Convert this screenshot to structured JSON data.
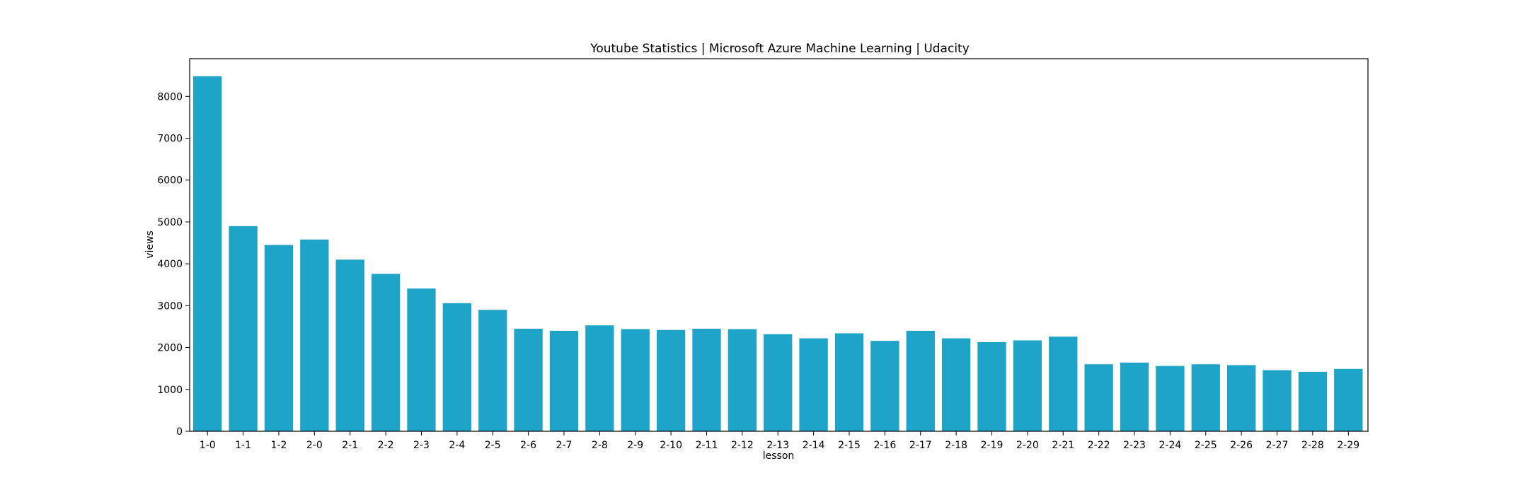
{
  "chart_data": {
    "type": "bar",
    "title": "Youtube Statistics | Microsoft Azure Machine Learning | Udacity",
    "xlabel": "lesson",
    "ylabel": "views",
    "ylim": [
      0,
      8900
    ],
    "yticks": [
      0,
      1000,
      2000,
      3000,
      4000,
      5000,
      6000,
      7000,
      8000
    ],
    "grid": false,
    "legend": "none",
    "bar_color": "#1fa4c9",
    "categories": [
      "1-0",
      "1-1",
      "1-2",
      "2-0",
      "2-1",
      "2-2",
      "2-3",
      "2-4",
      "2-5",
      "2-6",
      "2-7",
      "2-8",
      "2-9",
      "2-10",
      "2-11",
      "2-12",
      "2-13",
      "2-14",
      "2-15",
      "2-16",
      "2-17",
      "2-18",
      "2-19",
      "2-20",
      "2-21",
      "2-22",
      "2-23",
      "2-24",
      "2-25",
      "2-26",
      "2-27",
      "2-28",
      "2-29"
    ],
    "values": [
      8480,
      4900,
      4450,
      4580,
      4100,
      3760,
      3410,
      3060,
      2900,
      2450,
      2400,
      2530,
      2440,
      2420,
      2450,
      2440,
      2320,
      2220,
      2340,
      2160,
      2400,
      2220,
      2130,
      2170,
      2260,
      1600,
      1640,
      1560,
      1600,
      1580,
      1460,
      1420,
      1490
    ]
  }
}
